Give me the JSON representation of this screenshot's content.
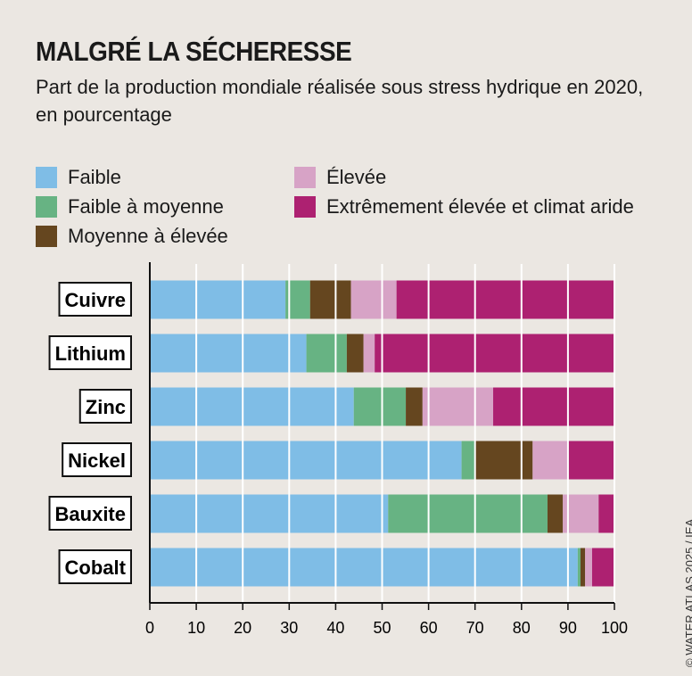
{
  "title": "MALGRÉ LA SÉCHERESSE",
  "subtitle": "Part de la production mondiale réalisée sous stress hydrique en 2020, en pourcentage",
  "credit": "© WATER ATLAS 2025 / IEA",
  "chart_data": {
    "type": "bar",
    "orientation": "horizontal",
    "stacked": true,
    "categories": [
      "Cuivre",
      "Lithium",
      "Zinc",
      "Nickel",
      "Bauxite",
      "Cobalt"
    ],
    "series": [
      {
        "name": "Faible",
        "color": "#7fbde6",
        "values": [
          29.2,
          33.7,
          43.9,
          67.1,
          51.3,
          92.1
        ]
      },
      {
        "name": "Faible à moyenne",
        "color": "#67b383",
        "values": [
          5.3,
          8.7,
          11.2,
          3.0,
          34.3,
          0.6
        ]
      },
      {
        "name": "Moyenne à élevée",
        "color": "#65461f",
        "values": [
          8.8,
          3.6,
          3.6,
          12.3,
          3.3,
          1.0
        ]
      },
      {
        "name": "Élevée",
        "color": "#d7a3c6",
        "values": [
          9.8,
          2.4,
          15.2,
          7.7,
          7.7,
          1.5
        ]
      },
      {
        "name": "Extrêmement élevée et climat aride",
        "color": "#ad2171",
        "values": [
          46.9,
          51.6,
          26.1,
          9.9,
          3.4,
          4.8
        ]
      }
    ],
    "xlim": [
      0,
      100
    ],
    "xticks": [
      "0",
      "10",
      "20",
      "30",
      "40",
      "50",
      "60",
      "70",
      "80",
      "90",
      "100"
    ],
    "grid": true,
    "legend_placement": "top"
  }
}
